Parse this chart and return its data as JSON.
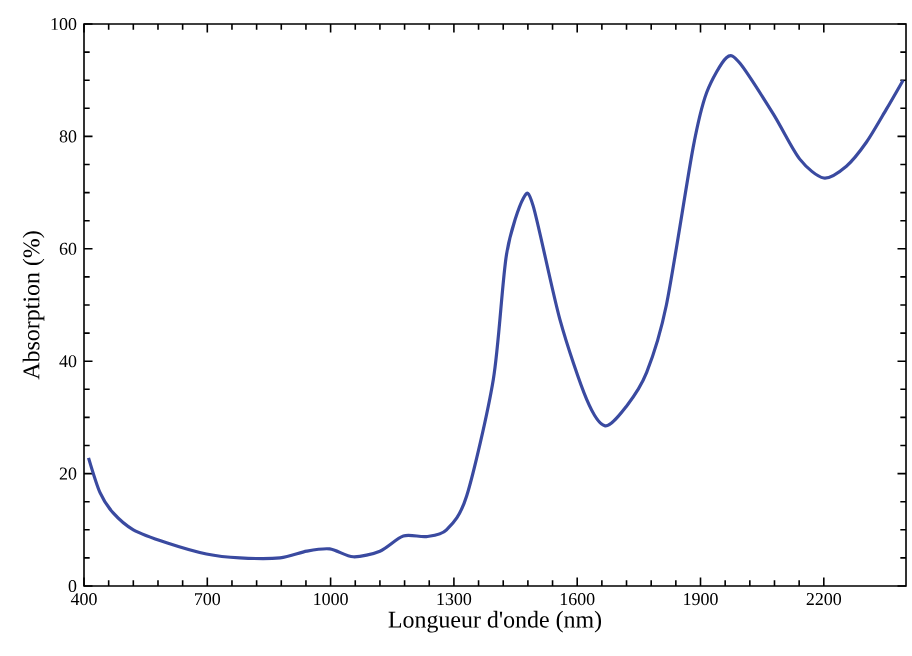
{
  "chart_data": {
    "type": "line",
    "xlabel": "Longueur d'onde (nm)",
    "ylabel": "Absorption (%)",
    "xlim": [
      400,
      2400
    ],
    "ylim": [
      0,
      100
    ],
    "xticks": [
      400,
      700,
      1000,
      1300,
      1600,
      1900,
      2200
    ],
    "yticks": [
      0,
      20,
      40,
      60,
      80,
      100
    ],
    "series": [
      {
        "color": "#3a4aa0",
        "x": [
          411,
          439,
          471,
          520,
          601,
          698,
          779,
          877,
          942,
          998,
          1055,
          1120,
          1177,
          1233,
          1282,
          1331,
          1396,
          1428,
          1469,
          1493,
          1558,
          1623,
          1668,
          1720,
          1769,
          1817,
          1882,
          1915,
          1963,
          1996,
          2077,
          2141,
          2200,
          2255,
          2304,
          2352,
          2393
        ],
        "values": [
          22.8,
          16.6,
          13,
          10,
          7.7,
          5.7,
          5,
          5,
          6.2,
          6.6,
          5.2,
          6.2,
          8.9,
          8.8,
          10,
          16,
          36.8,
          59,
          69,
          67.6,
          47.4,
          33.2,
          28.5,
          32,
          38,
          50,
          78,
          87.8,
          94,
          93,
          84,
          76,
          72.6,
          74.7,
          79,
          84.8,
          90
        ]
      }
    ]
  }
}
